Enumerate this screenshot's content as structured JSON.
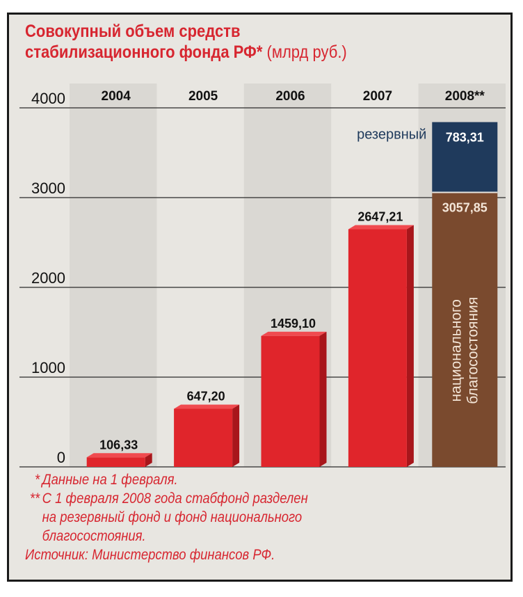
{
  "title": {
    "line1": "Совокупный объем средств",
    "line2": "стабилизационного фонда РФ*",
    "unit": "(млрд руб.)"
  },
  "colors": {
    "accent": "#d72630",
    "bar": "#e0252b",
    "bar_side": "#a8161b",
    "reserve": "#1f3a5c",
    "national": "#7a4a2e",
    "frame": "#e8e6e1",
    "grid": "#2a2a2a"
  },
  "chart_data": {
    "type": "bar",
    "categories": [
      "2004",
      "2005",
      "2006",
      "2007",
      "2008**"
    ],
    "values": [
      106.33,
      647.2,
      1459.1,
      2647.21,
      null
    ],
    "value_labels": [
      "106,33",
      "647,20",
      "1459,10",
      "2647,21",
      ""
    ],
    "stacked_last": {
      "category": "2008**",
      "segments": [
        {
          "name": "национального благосостояния",
          "value": 3057.85,
          "label": "3057,85",
          "color": "#7a4a2e"
        },
        {
          "name": "резервный",
          "value": 783.31,
          "label": "783,31",
          "color": "#1f3a5c"
        }
      ]
    },
    "yticks": [
      "0",
      "1000",
      "2000",
      "3000",
      "4000"
    ],
    "ylim": [
      0,
      4000
    ],
    "grid": true
  },
  "footnotes": {
    "note1_mark": "*",
    "note1": "Данные на 1 февраля.",
    "note2_mark": "**",
    "note2_l1": "С 1 февраля 2008 года стабфонд разделен",
    "note2_l2": "на резервный фонд и фонд национального",
    "note2_l3": "благосостояния.",
    "source": "Источник: Министерство финансов РФ."
  }
}
